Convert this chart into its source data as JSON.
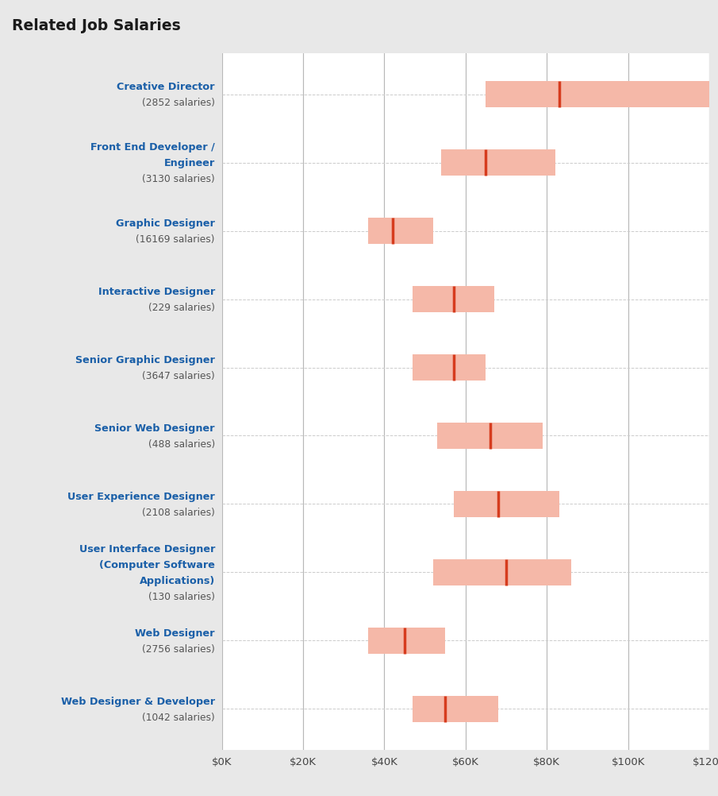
{
  "title": "Related Job Salaries",
  "title_bg": "#e2e2e2",
  "bg_color": "#e8e8e8",
  "plot_bg": "#ffffff",
  "x_min": 0,
  "x_max": 120000,
  "x_ticks": [
    0,
    20000,
    40000,
    60000,
    80000,
    100000,
    120000
  ],
  "x_tick_labels": [
    "$0K",
    "$20K",
    "$40K",
    "$60K",
    "$80K",
    "$100K",
    "$120K"
  ],
  "bar_height": 0.38,
  "bar_color": "#f5b8a8",
  "median_color": "#d63c1e",
  "label_color": "#1a5fa8",
  "sublabel_color": "#555555",
  "jobs": [
    {
      "name_lines": [
        "Creative Director"
      ],
      "count_line": "(2852 salaries)",
      "q1": 65000,
      "median": 83000,
      "q3": 121000
    },
    {
      "name_lines": [
        "Front End Developer /",
        "Engineer"
      ],
      "count_line": "(3130 salaries)",
      "q1": 54000,
      "median": 65000,
      "q3": 82000
    },
    {
      "name_lines": [
        "Graphic Designer"
      ],
      "count_line": "(16169 salaries)",
      "q1": 36000,
      "median": 42000,
      "q3": 52000
    },
    {
      "name_lines": [
        "Interactive Designer"
      ],
      "count_line": "(229 salaries)",
      "q1": 47000,
      "median": 57000,
      "q3": 67000
    },
    {
      "name_lines": [
        "Senior Graphic Designer"
      ],
      "count_line": "(3647 salaries)",
      "q1": 47000,
      "median": 57000,
      "q3": 65000
    },
    {
      "name_lines": [
        "Senior Web Designer"
      ],
      "count_line": "(488 salaries)",
      "q1": 53000,
      "median": 66000,
      "q3": 79000
    },
    {
      "name_lines": [
        "User Experience Designer"
      ],
      "count_line": "(2108 salaries)",
      "q1": 57000,
      "median": 68000,
      "q3": 83000
    },
    {
      "name_lines": [
        "User Interface Designer",
        "(Computer Software",
        "Applications)"
      ],
      "count_line": "(130 salaries)",
      "q1": 52000,
      "median": 70000,
      "q3": 86000
    },
    {
      "name_lines": [
        "Web Designer"
      ],
      "count_line": "(2756 salaries)",
      "q1": 36000,
      "median": 45000,
      "q3": 55000
    },
    {
      "name_lines": [
        "Web Designer & Developer"
      ],
      "count_line": "(1042 salaries)",
      "q1": 47000,
      "median": 55000,
      "q3": 68000
    }
  ]
}
